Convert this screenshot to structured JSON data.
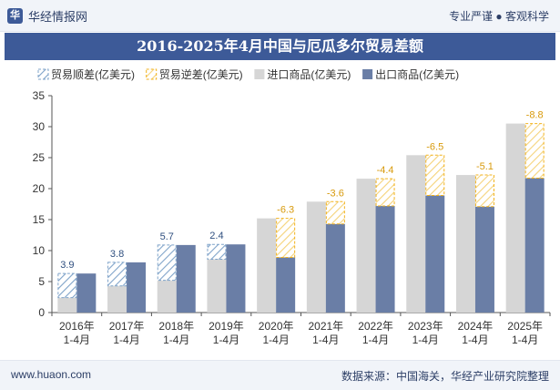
{
  "header": {
    "brand": "华经情报网",
    "tagline": "专业严谨 ● 客观科学"
  },
  "chart_data": {
    "type": "bar",
    "title": "2016-2025年4月中国与厄瓜多尔贸易差额",
    "categories": [
      "2016年\n1-4月",
      "2017年\n1-4月",
      "2018年\n1-4月",
      "2019年\n1-4月",
      "2020年\n1-4月",
      "2021年\n1-4月",
      "2022年\n1-4月",
      "2023年\n1-4月",
      "2024年\n1-4月",
      "2025年\n1-4月"
    ],
    "series": [
      {
        "name": "贸易顺差(亿美元)",
        "values": [
          3.9,
          3.8,
          5.7,
          2.4,
          null,
          null,
          null,
          null,
          null,
          null
        ]
      },
      {
        "name": "贸易逆差(亿美元)",
        "values": [
          null,
          null,
          null,
          null,
          -6.3,
          -3.6,
          -4.4,
          -6.5,
          -5.1,
          -8.8
        ]
      },
      {
        "name": "进口商品(亿美元)",
        "values": [
          2.4,
          4.3,
          5.2,
          8.6,
          15.2,
          17.9,
          21.6,
          25.4,
          22.2,
          30.5
        ]
      },
      {
        "name": "出口商品(亿美元)",
        "values": [
          6.3,
          8.1,
          10.9,
          11.0,
          8.9,
          14.3,
          17.2,
          18.9,
          17.1,
          21.7
        ]
      }
    ],
    "data_labels": [
      "3.9",
      "3.8",
      "5.7",
      "2.4",
      "-6.3",
      "-3.6",
      "-4.4",
      "-6.5",
      "-5.1",
      "-8.8"
    ],
    "ylim": [
      0,
      35
    ],
    "yticks": [
      0,
      5,
      10,
      15,
      20,
      25,
      30,
      35
    ],
    "legend_position": "top-left",
    "grid": false
  },
  "colors": {
    "import": "#d6d6d6",
    "export": "#6a7ea6",
    "surplus": "#7fa3c9",
    "deficit": "#f2b21c",
    "title_bg": "#3d5a98"
  },
  "footer": {
    "url": "www.huaon.com",
    "source": "数据来源：中国海关，华经产业研究院整理"
  }
}
